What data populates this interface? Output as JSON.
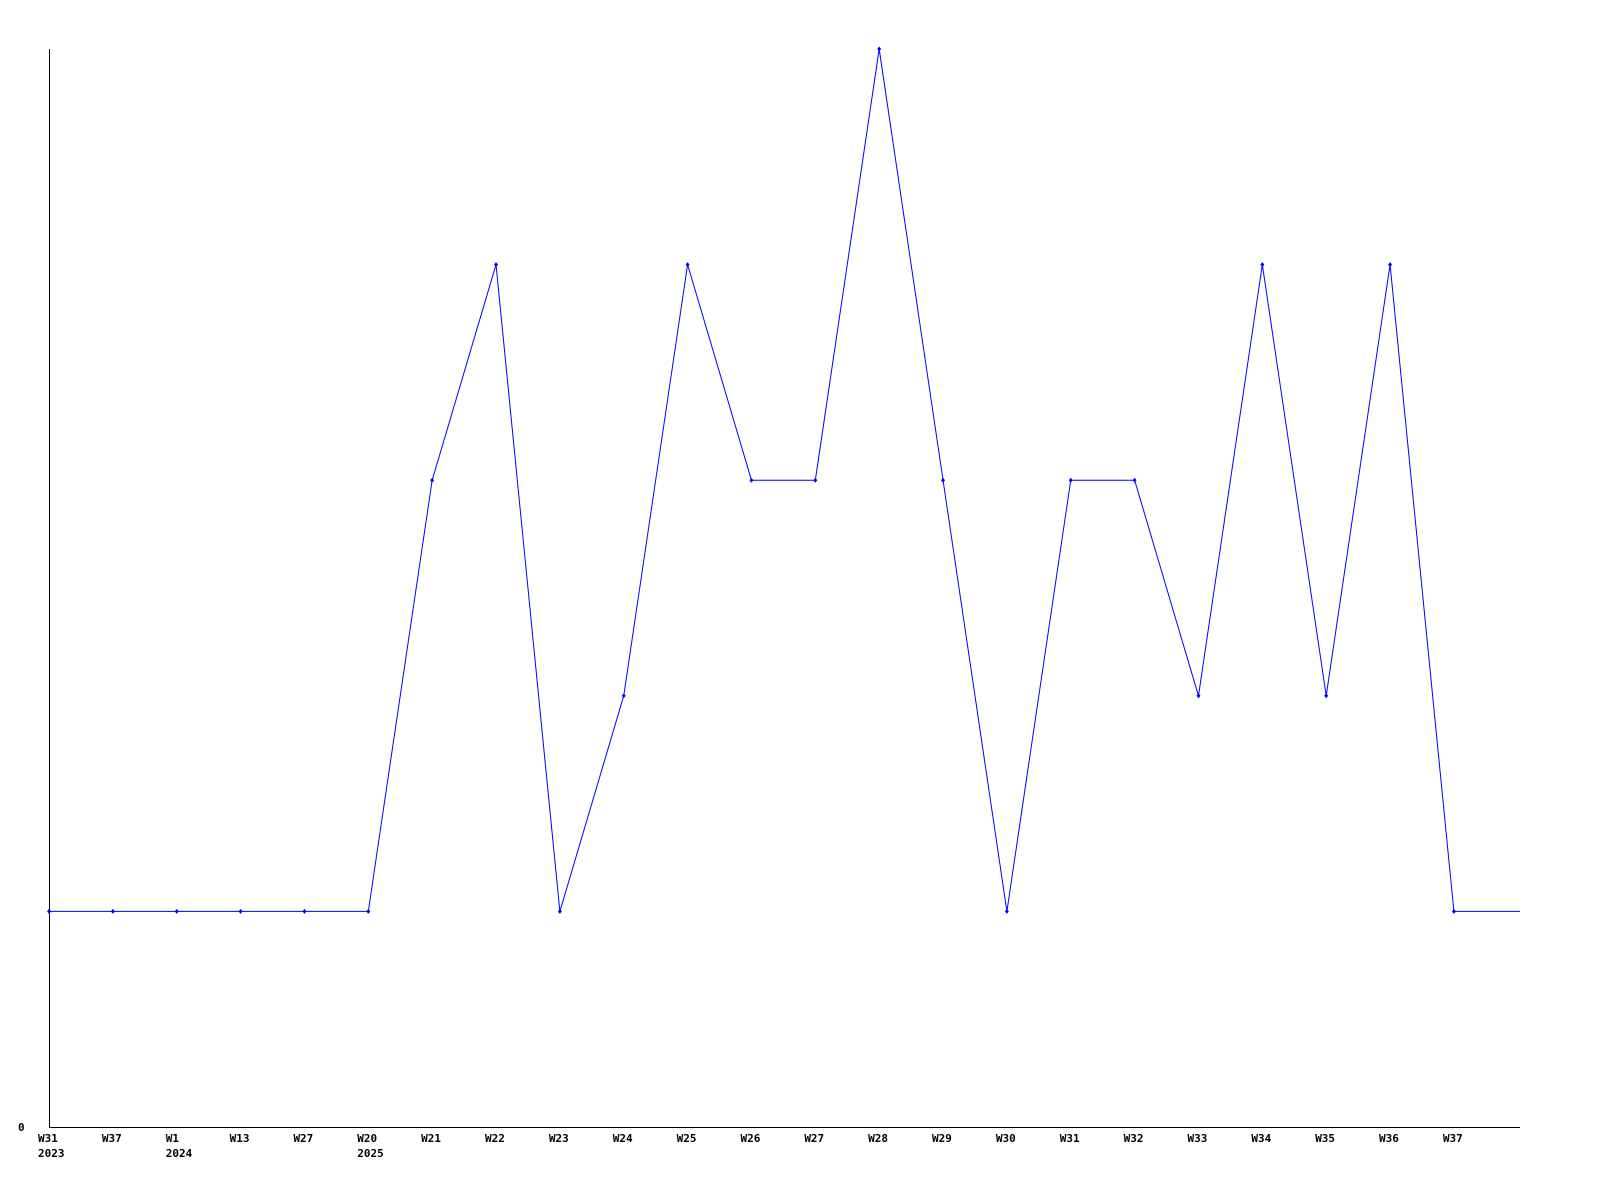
{
  "chart_data": {
    "type": "line",
    "title": "",
    "xlabel": "",
    "ylabel": "",
    "ylim": [
      0,
      5
    ],
    "y_tick_labels": [
      "0"
    ],
    "grid": false,
    "legend": "none",
    "series_color": "#0000ff",
    "categories": [
      {
        "week": "W31",
        "year": "2023"
      },
      {
        "week": "W37",
        "year": ""
      },
      {
        "week": "W1",
        "year": "2024"
      },
      {
        "week": "W13",
        "year": ""
      },
      {
        "week": "W27",
        "year": ""
      },
      {
        "week": "W20",
        "year": "2025"
      },
      {
        "week": "W21",
        "year": ""
      },
      {
        "week": "W22",
        "year": ""
      },
      {
        "week": "W23",
        "year": ""
      },
      {
        "week": "W24",
        "year": ""
      },
      {
        "week": "W25",
        "year": ""
      },
      {
        "week": "W26",
        "year": ""
      },
      {
        "week": "W27",
        "year": ""
      },
      {
        "week": "W28",
        "year": ""
      },
      {
        "week": "W29",
        "year": ""
      },
      {
        "week": "W30",
        "year": ""
      },
      {
        "week": "W31",
        "year": ""
      },
      {
        "week": "W32",
        "year": ""
      },
      {
        "week": "W33",
        "year": ""
      },
      {
        "week": "W34",
        "year": ""
      },
      {
        "week": "W35",
        "year": ""
      },
      {
        "week": "W36",
        "year": ""
      },
      {
        "week": "W37",
        "year": ""
      }
    ],
    "values": [
      1,
      1,
      1,
      1,
      1,
      1,
      3,
      4,
      1,
      2,
      4,
      3,
      3,
      5,
      3,
      1,
      3,
      3,
      2,
      4,
      2,
      4,
      1
    ]
  }
}
